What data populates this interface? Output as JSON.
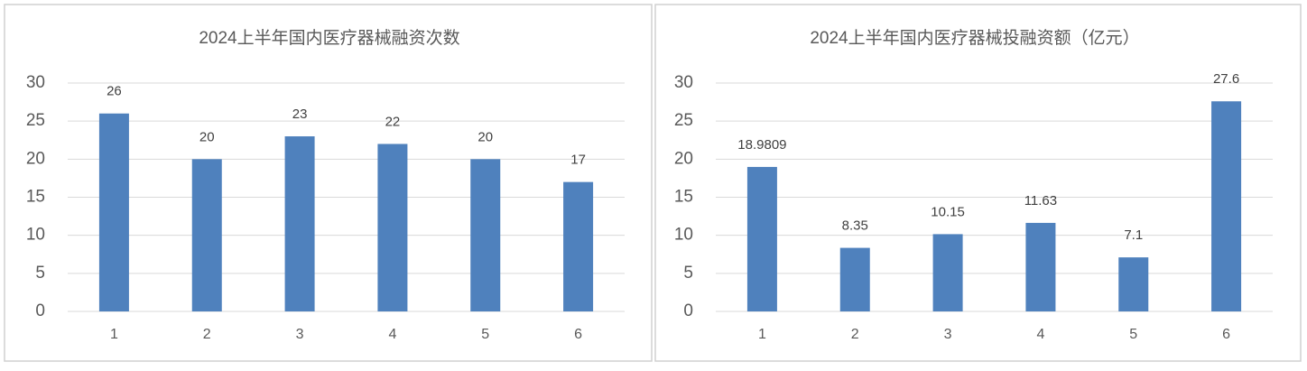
{
  "chart_data": [
    {
      "type": "bar",
      "title": "2024上半年国内医疗器械融资次数",
      "categories": [
        "1",
        "2",
        "3",
        "4",
        "5",
        "6"
      ],
      "values": [
        26,
        20,
        23,
        22,
        20,
        17
      ],
      "color": "#4f81bd",
      "ylim": [
        0,
        30
      ],
      "yticks": [
        0,
        5,
        10,
        15,
        20,
        25,
        30
      ],
      "grid": true
    },
    {
      "type": "bar",
      "title": "2024上半年国内医疗器械投融资额（亿元）",
      "categories": [
        "1",
        "2",
        "3",
        "4",
        "5",
        "6"
      ],
      "values": [
        18.9809,
        8.35,
        10.15,
        11.63,
        7.1,
        27.6
      ],
      "color": "#4f81bd",
      "ylim": [
        0,
        30
      ],
      "yticks": [
        0,
        5,
        10,
        15,
        20,
        25,
        30
      ],
      "grid": true
    }
  ]
}
